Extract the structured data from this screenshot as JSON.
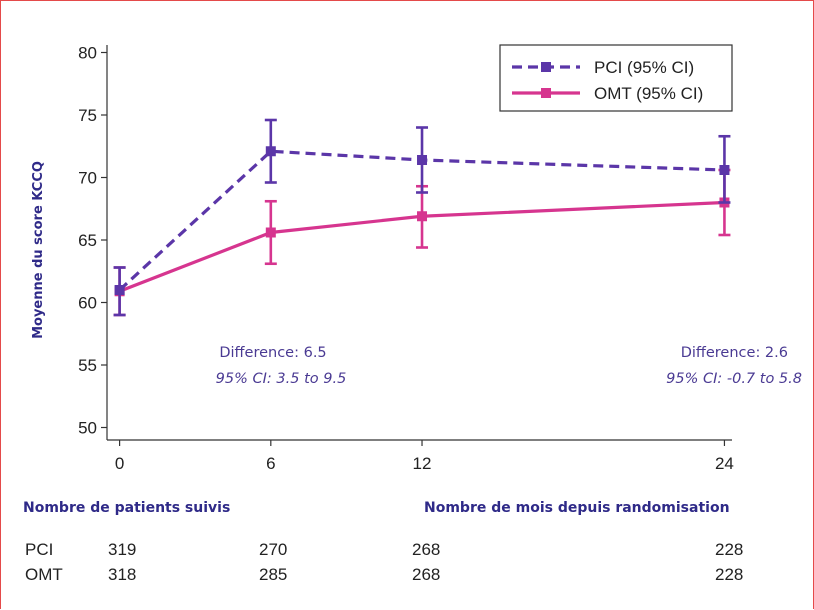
{
  "chart_data": {
    "type": "line",
    "ylabel": "Moyenne du score KCCQ",
    "xlabel": "",
    "x": [
      0,
      6,
      12,
      24
    ],
    "x_ticks": [
      "0",
      "6",
      "12",
      "24"
    ],
    "y_ticks": [
      "50",
      "55",
      "60",
      "65",
      "70",
      "75",
      "80"
    ],
    "ylim": [
      49,
      81
    ],
    "xlim": [
      -0.5,
      24.3
    ],
    "grid": false,
    "legend_position": "top-right",
    "series": [
      {
        "name": "PCI (95% CI)",
        "color": "#5b36a8",
        "dash": true,
        "values": [
          61.0,
          72.1,
          71.4,
          70.6
        ],
        "ci_low": [
          59.0,
          69.6,
          68.8,
          68.0
        ],
        "ci_high": [
          62.8,
          74.6,
          74.0,
          73.3
        ]
      },
      {
        "name": "OMT (95% CI)",
        "color": "#d6358f",
        "dash": false,
        "values": [
          60.9,
          65.6,
          66.9,
          68.0
        ],
        "ci_low": [
          59.0,
          63.1,
          64.4,
          65.4
        ],
        "ci_high": [
          62.8,
          68.1,
          69.3,
          70.6
        ]
      }
    ],
    "annotations": [
      {
        "line1": "Difference: 6.5",
        "line2": "95% CI: 3.5 to 9.5"
      },
      {
        "line1": "Difference: 2.6",
        "line2": "95% CI: -0.7 to 5.8"
      }
    ]
  },
  "table": {
    "title": "Nombre de patients suivis",
    "xaxis_caption": "Nombre de mois depuis randomisation",
    "rows": [
      {
        "label": "PCI",
        "values": [
          "319",
          "270",
          "268",
          "228"
        ]
      },
      {
        "label": "OMT",
        "values": [
          "318",
          "285",
          "268",
          "228"
        ]
      }
    ]
  }
}
